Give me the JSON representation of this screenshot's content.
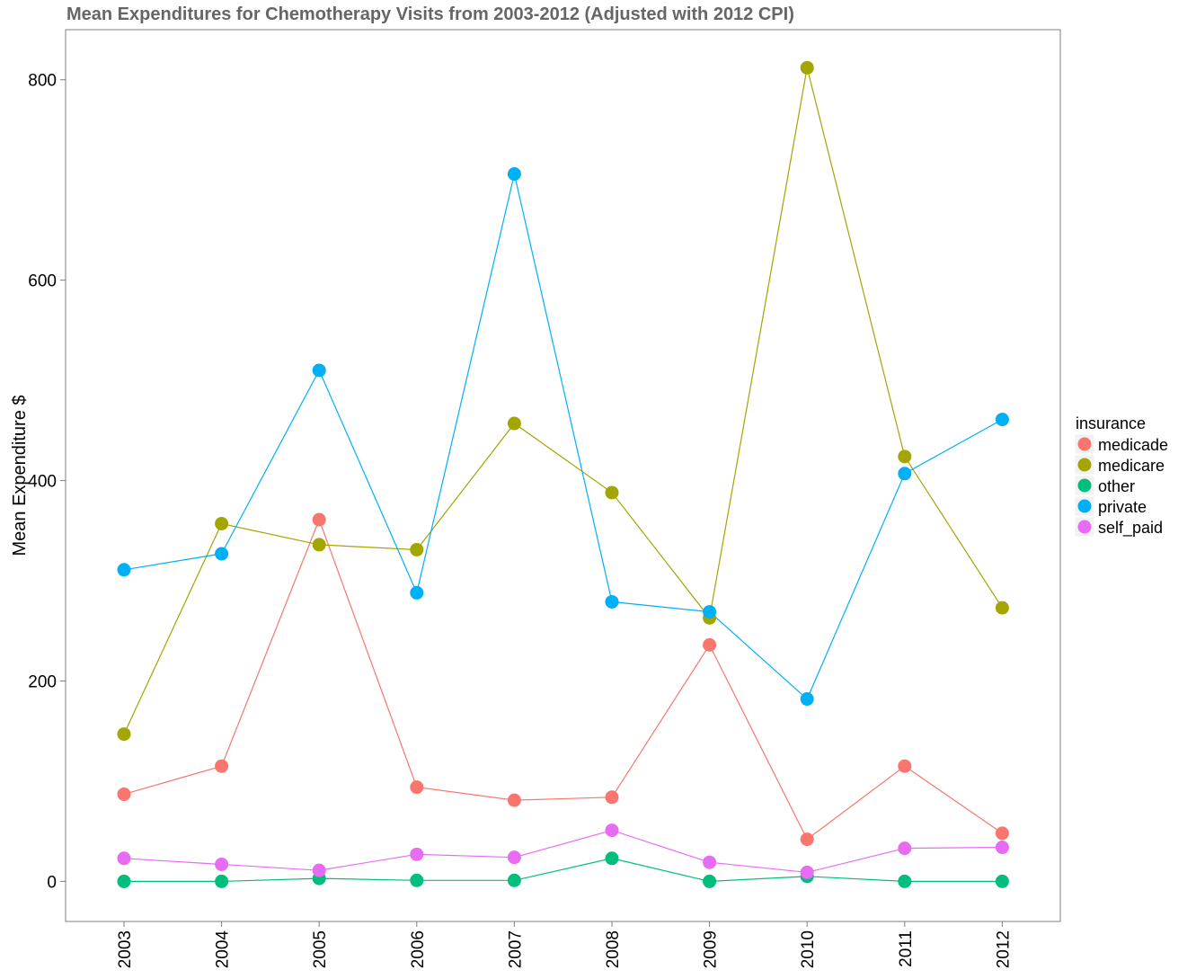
{
  "chart_data": {
    "type": "line",
    "title": "Mean Expenditures for Chemotherapy Visits from 2003-2012 (Adjusted with 2012 CPI)",
    "xlabel": "",
    "ylabel": "Mean Expenditure $",
    "categories": [
      "2003",
      "2004",
      "2005",
      "2006",
      "2007",
      "2008",
      "2009",
      "2010",
      "2011",
      "2012"
    ],
    "ylim": [
      -40,
      850
    ],
    "yticks": [
      0,
      200,
      400,
      600,
      800
    ],
    "grid": false,
    "legend": {
      "title": "insurance",
      "position": "right"
    },
    "series": [
      {
        "name": "medicade",
        "color": "#F8766D",
        "values": [
          87,
          115,
          361,
          94,
          81,
          84,
          236,
          42,
          115,
          48
        ]
      },
      {
        "name": "medicare",
        "color": "#A3A500",
        "values": [
          147,
          357,
          336,
          331,
          457,
          388,
          263,
          812,
          424,
          273
        ]
      },
      {
        "name": "other",
        "color": "#00BF7D",
        "values": [
          0,
          0,
          3,
          1,
          1,
          23,
          0,
          5,
          0,
          0
        ]
      },
      {
        "name": "private",
        "color": "#00B0F6",
        "values": [
          311,
          327,
          510,
          288,
          706,
          279,
          269,
          182,
          407,
          461
        ]
      },
      {
        "name": "self_paid",
        "color": "#E76BF3",
        "values": [
          23,
          17,
          11,
          27,
          24,
          51,
          19,
          9,
          33,
          34
        ]
      }
    ]
  }
}
